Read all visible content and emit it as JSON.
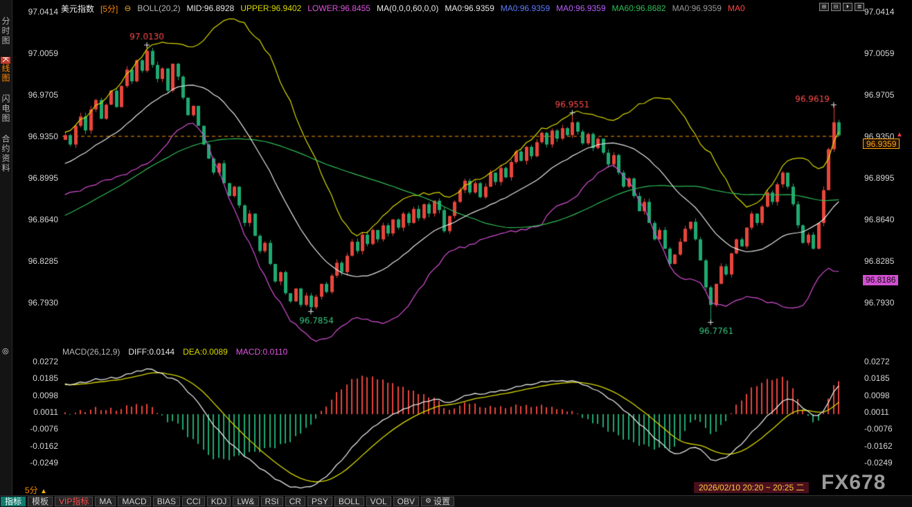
{
  "header": {
    "symbol": "美元指数",
    "period": "[5分]",
    "minus_icon": "⊖",
    "boll": "BOLL(20,2)",
    "mid": "MID:96.8928",
    "upper": "UPPER:96.9402",
    "lower": "LOWER:96.8455",
    "ma_group": "MA(0,0,0,60,0,0)",
    "ma_values": [
      {
        "text": "MA0:96.9359",
        "color": "#e8e8e8"
      },
      {
        "text": "MA0:96.9359",
        "color": "#5f7cff"
      },
      {
        "text": "MA0:96.9359",
        "color": "#b95fff"
      },
      {
        "text": "MA60:96.8682",
        "color": "#2fbf57"
      },
      {
        "text": "MA0:96.9359",
        "color": "#9a9a9a"
      },
      {
        "text": "MA0",
        "color": "#ff4545"
      }
    ],
    "window_controls": [
      {
        "name": "pan-left-icon",
        "glyph": "⊞"
      },
      {
        "name": "pan-right-icon",
        "glyph": "⊟"
      },
      {
        "name": "zoom-in-icon",
        "glyph": "⏵"
      },
      {
        "name": "zoom-out-icon",
        "glyph": "≣"
      }
    ]
  },
  "sidebar": {
    "tabs": [
      {
        "label": "分时图",
        "active": false
      },
      {
        "label": "K线图",
        "active": true
      },
      {
        "label": "闪电图",
        "active": false
      },
      {
        "label": "合约资料",
        "active": false
      }
    ],
    "scope_icon": "◎"
  },
  "macd_header": {
    "title": "MACD(26,12,9)",
    "diff": "DIFF:0.0144",
    "dea": "DEA:0.0089",
    "macd": "MACD:0.0110"
  },
  "right_panel": {
    "price_badge": "96.9359",
    "lower_badge": "96.8186",
    "up_arrow": "▲"
  },
  "footer": {
    "period_label": "5分",
    "period_arrow": "▲",
    "time_range": "2026/02/10 20:20 ~ 20:25 二",
    "watermark": "FX678",
    "toolbar": [
      {
        "label": "指标",
        "style": "active"
      },
      {
        "label": "模板",
        "style": "normal"
      },
      {
        "label": "VIP指标",
        "style": "vip"
      },
      {
        "label": "MA",
        "style": "normal"
      },
      {
        "label": "MACD",
        "style": "normal"
      },
      {
        "label": "BIAS",
        "style": "normal"
      },
      {
        "label": "CCI",
        "style": "normal"
      },
      {
        "label": "KDJ",
        "style": "normal"
      },
      {
        "label": "LW&",
        "style": "normal"
      },
      {
        "label": "RSI",
        "style": "normal"
      },
      {
        "label": "CR",
        "style": "normal"
      },
      {
        "label": "PSY",
        "style": "normal"
      },
      {
        "label": "BOLL",
        "style": "normal"
      },
      {
        "label": "VOL",
        "style": "normal"
      },
      {
        "label": "OBV",
        "style": "normal"
      },
      {
        "label": "设置",
        "style": "settings"
      }
    ]
  },
  "chart_data": {
    "type": "candlestick",
    "title": "美元指数 [5分]",
    "overlays": [
      "BOLL(20,2)",
      "MA60"
    ],
    "price_axis": [
      97.0414,
      97.0059,
      96.9705,
      96.935,
      96.8995,
      96.864,
      96.8285,
      96.793
    ],
    "macd_axis": [
      0.0272,
      0.0185,
      0.0098,
      0.0011,
      -0.0076,
      -0.0162,
      -0.0249
    ],
    "current_price": 96.9359,
    "dashed_line": 96.935,
    "lower_badge_price": 96.8186,
    "boll": {
      "mid": 96.8928,
      "upper": 96.9402,
      "lower": 96.8455
    },
    "ma60_last": 96.8682,
    "macd_last": {
      "diff": 0.0144,
      "dea": 0.0089,
      "hist": 0.011
    },
    "closes": [
      96.936,
      96.928,
      96.944,
      96.952,
      96.94,
      96.958,
      96.966,
      96.95,
      96.962,
      96.974,
      96.96,
      96.978,
      96.992,
      96.982,
      97.0,
      96.991,
      97.008,
      96.996,
      96.984,
      96.993,
      96.974,
      96.997,
      96.986,
      96.968,
      96.953,
      96.961,
      96.944,
      96.928,
      96.916,
      96.904,
      96.912,
      96.895,
      96.884,
      96.892,
      96.876,
      96.861,
      96.869,
      96.85,
      96.837,
      96.844,
      96.826,
      96.811,
      96.819,
      96.801,
      96.794,
      96.805,
      96.791,
      96.799,
      96.789,
      96.798,
      96.809,
      96.802,
      96.816,
      96.827,
      96.819,
      96.833,
      96.845,
      96.837,
      96.851,
      96.843,
      96.855,
      96.847,
      96.859,
      96.852,
      96.864,
      96.857,
      96.869,
      96.861,
      96.873,
      96.865,
      96.877,
      96.869,
      96.88,
      96.872,
      96.854,
      96.867,
      96.879,
      96.889,
      96.897,
      96.887,
      96.895,
      96.883,
      96.892,
      96.904,
      96.896,
      96.908,
      96.9,
      96.913,
      96.922,
      96.914,
      96.926,
      96.918,
      96.93,
      96.938,
      96.928,
      96.94,
      96.933,
      96.942,
      96.936,
      96.947,
      96.939,
      96.929,
      96.937,
      96.925,
      96.933,
      96.921,
      96.911,
      96.919,
      96.904,
      96.892,
      96.899,
      96.884,
      96.871,
      96.879,
      96.861,
      96.847,
      96.855,
      96.839,
      96.826,
      96.834,
      96.845,
      96.856,
      96.862,
      96.847,
      96.829,
      96.806,
      96.791,
      96.809,
      96.824,
      96.817,
      96.835,
      96.847,
      96.841,
      96.857,
      96.869,
      96.861,
      96.875,
      96.887,
      96.879,
      96.894,
      96.904,
      96.892,
      96.877,
      96.859,
      96.844,
      96.851,
      96.839,
      96.861,
      96.889,
      96.924,
      96.947,
      96.9359
    ],
    "annotations": [
      {
        "bar": 16,
        "price": 97.013,
        "type": "high",
        "label": "97.0130"
      },
      {
        "bar": 48,
        "price": 96.7854,
        "type": "low",
        "label": "96.7854"
      },
      {
        "bar": 99,
        "price": 96.9551,
        "type": "high",
        "label": "96.9551"
      },
      {
        "bar": 126,
        "price": 96.7761,
        "type": "low",
        "label": "96.7761"
      },
      {
        "bar": 150,
        "price": 96.9619,
        "type": "high",
        "label": "96.9619"
      }
    ],
    "colors": {
      "up": "#e8453c",
      "down": "#1fa970",
      "boll_upper": "#d9d900",
      "boll_mid": "#e8e8e8",
      "boll_lower": "#d94fd9",
      "ma60": "#2fbf57",
      "macd_diff": "#e8e8e8",
      "macd_dea": "#d9d900",
      "dashed": "#ff9900",
      "ann_high": "#ff4d4d",
      "ann_low": "#35c77f"
    }
  }
}
